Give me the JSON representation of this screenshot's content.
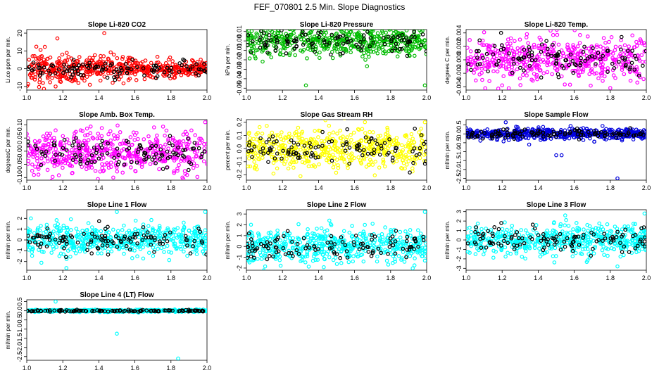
{
  "title": "FEF_070801  2.5 Min. Slope Diagnostics",
  "overlay_color": "#000000",
  "chart_data": [
    {
      "type": "scatter",
      "title": "Slope Li-820 CO2",
      "ylabel": "Li.co ppm per min.",
      "color": "#ff0000",
      "xlim": [
        1.0,
        2.0
      ],
      "ylim": [
        -12,
        22
      ],
      "yticks": [
        -10,
        0,
        10,
        20
      ],
      "xticks": [
        1.0,
        1.2,
        1.4,
        1.6,
        1.8,
        2.0
      ],
      "spread": 3,
      "outliers": [
        [
          1.17,
          17
        ],
        [
          1.43,
          20
        ],
        [
          1.16,
          -10
        ],
        [
          1.09,
          -8
        ],
        [
          1.35,
          -9
        ]
      ]
    },
    {
      "type": "scatter",
      "title": "Slope Li-820 Pressure",
      "ylabel": "kPa per min.",
      "color": "#00bb00",
      "xlim": [
        1.0,
        2.0
      ],
      "ylim": [
        -0.052,
        0.012
      ],
      "yticks": [
        -0.05,
        -0.04,
        -0.03,
        -0.02,
        -0.01,
        0.0,
        0.01
      ],
      "xticks": [
        1.0,
        1.2,
        1.4,
        1.6,
        1.8,
        2.0
      ],
      "spread": 0.008,
      "outliers": [
        [
          1.33,
          -0.047
        ],
        [
          1.99,
          -0.047
        ],
        [
          1.66,
          -0.02
        ]
      ]
    },
    {
      "type": "scatter",
      "title": "Slope Li-820 Temp.",
      "ylabel": "degrees C per min.",
      "color": "#ff00ff",
      "xlim": [
        1.0,
        2.0
      ],
      "ylim": [
        -0.0045,
        0.0045
      ],
      "yticks": [
        -0.004,
        -0.002,
        0.0,
        0.002,
        0.004
      ],
      "xticks": [
        1.0,
        1.2,
        1.4,
        1.6,
        1.8,
        2.0
      ],
      "spread": 0.0017,
      "outliers": [
        [
          1.1,
          0.0041
        ],
        [
          1.8,
          -0.0042
        ],
        [
          1.2,
          -0.0038
        ]
      ]
    },
    {
      "type": "scatter",
      "title": "Slope Amb. Box Temp.",
      "ylabel": "degreesC per min.",
      "color": "#ff00ff",
      "xlim": [
        1.0,
        2.0
      ],
      "ylim": [
        -0.11,
        0.12
      ],
      "yticks": [
        -0.1,
        -0.05,
        0.0,
        0.05,
        0.1
      ],
      "xticks": [
        1.0,
        1.2,
        1.4,
        1.6,
        1.8,
        2.0
      ],
      "spread": 0.04,
      "outliers": [
        [
          1.48,
          -0.1
        ],
        [
          1.99,
          0.11
        ],
        [
          1.04,
          -0.09
        ]
      ]
    },
    {
      "type": "scatter",
      "title": "Slope Gas Stream RH",
      "ylabel": "percent per min.",
      "color": "#ffff00",
      "xlim": [
        1.0,
        2.0
      ],
      "ylim": [
        -0.24,
        0.22
      ],
      "yticks": [
        -0.2,
        -0.1,
        0.0,
        0.1,
        0.2
      ],
      "xticks": [
        1.0,
        1.2,
        1.4,
        1.6,
        1.8,
        2.0
      ],
      "spread": 0.08,
      "outliers": [
        [
          1.3,
          -0.21
        ],
        [
          1.99,
          0.2
        ],
        [
          1.15,
          -0.19
        ]
      ]
    },
    {
      "type": "scatter",
      "title": "Slope Sample Flow",
      "ylabel": "ml/min per min.",
      "color": "#0000dd",
      "xlim": [
        1.0,
        2.0
      ],
      "ylim": [
        -2.6,
        0.8
      ],
      "yticks": [
        -2.5,
        -2,
        -1.5,
        -1,
        -0.5,
        0,
        0.5
      ],
      "xticks": [
        1.0,
        1.2,
        1.4,
        1.6,
        1.8,
        2.0
      ],
      "spread": 0.15,
      "outliers": [
        [
          1.5,
          -1.2
        ],
        [
          1.53,
          -1.2
        ],
        [
          1.84,
          -2.5
        ],
        [
          1.35,
          -0.6
        ],
        [
          1.22,
          0.65
        ]
      ]
    },
    {
      "type": "scatter",
      "title": "Slope Line 1 Flow",
      "ylabel": "ml/min per min.",
      "color": "#00ffff",
      "xlim": [
        1.0,
        2.0
      ],
      "ylim": [
        -2.8,
        2.8
      ],
      "yticks": [
        -2,
        -1,
        0,
        1,
        2
      ],
      "xticks": [
        1.0,
        1.2,
        1.4,
        1.6,
        1.8,
        2.0
      ],
      "spread": 0.7,
      "outliers": [
        [
          1.22,
          -2.6
        ],
        [
          1.99,
          2.6
        ],
        [
          1.5,
          2.6
        ]
      ]
    },
    {
      "type": "scatter",
      "title": "Slope Line 2 Flow",
      "ylabel": "ml/min per min.",
      "color": "#00ffff",
      "xlim": [
        1.0,
        2.0
      ],
      "ylim": [
        -2.2,
        3.4
      ],
      "yticks": [
        -2,
        -1,
        0,
        1,
        2,
        3
      ],
      "xticks": [
        1.0,
        1.2,
        1.4,
        1.6,
        1.8,
        2.0
      ],
      "spread": 0.75,
      "outliers": [
        [
          1.99,
          3.2
        ],
        [
          1.46,
          2.4
        ],
        [
          1.7,
          2.1
        ]
      ]
    },
    {
      "type": "scatter",
      "title": "Slope Line 3 Flow",
      "ylabel": "ml/min per min.",
      "color": "#00ffff",
      "xlim": [
        1.0,
        2.0
      ],
      "ylim": [
        -3.2,
        3.2
      ],
      "yticks": [
        -3,
        -2,
        -1,
        0,
        1,
        2,
        3
      ],
      "xticks": [
        1.0,
        1.2,
        1.4,
        1.6,
        1.8,
        2.0
      ],
      "spread": 0.8,
      "outliers": [
        [
          1.84,
          -2.8
        ],
        [
          1.99,
          2.8
        ],
        [
          1.55,
          2.6
        ]
      ]
    },
    {
      "type": "scatter",
      "title": "Slope Line 4 (LT) Flow",
      "ylabel": "ml/min per min.",
      "color": "#00ffff",
      "xlim": [
        1.0,
        2.0
      ],
      "ylim": [
        -2.7,
        0.6
      ],
      "yticks": [
        -2.5,
        -2,
        -1.5,
        -1,
        -0.5,
        0,
        0.5
      ],
      "xticks": [
        1.0,
        1.2,
        1.4,
        1.6,
        1.8,
        2.0
      ],
      "spread": 0.03,
      "outliers": [
        [
          1.16,
          0.5
        ],
        [
          1.5,
          -1.25
        ],
        [
          1.84,
          -2.6
        ]
      ]
    }
  ]
}
